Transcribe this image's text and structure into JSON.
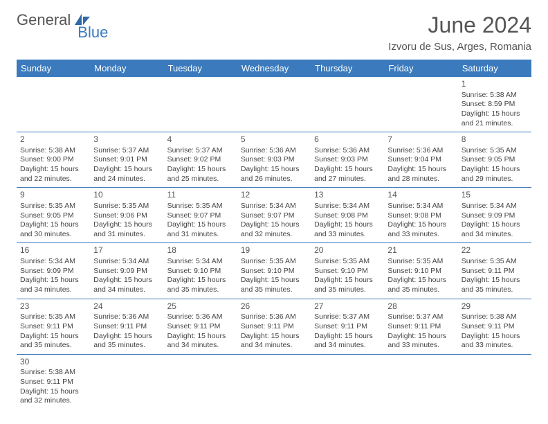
{
  "brand": {
    "part1": "General",
    "part2": "Blue"
  },
  "title": "June 2024",
  "location": "Izvoru de Sus, Arges, Romania",
  "colors": {
    "header_bg": "#3a7abd",
    "header_text": "#ffffff",
    "border": "#3a7abd",
    "text": "#444444",
    "title": "#555555"
  },
  "typography": {
    "title_fontsize": 32,
    "location_fontsize": 15,
    "dayheader_fontsize": 13,
    "cell_fontsize": 10.5,
    "daynum_fontsize": 12
  },
  "dayHeaders": [
    "Sunday",
    "Monday",
    "Tuesday",
    "Wednesday",
    "Thursday",
    "Friday",
    "Saturday"
  ],
  "weeks": [
    [
      null,
      null,
      null,
      null,
      null,
      null,
      {
        "n": "1",
        "sr": "Sunrise: 5:38 AM",
        "ss": "Sunset: 8:59 PM",
        "d1": "Daylight: 15 hours",
        "d2": "and 21 minutes."
      }
    ],
    [
      {
        "n": "2",
        "sr": "Sunrise: 5:38 AM",
        "ss": "Sunset: 9:00 PM",
        "d1": "Daylight: 15 hours",
        "d2": "and 22 minutes."
      },
      {
        "n": "3",
        "sr": "Sunrise: 5:37 AM",
        "ss": "Sunset: 9:01 PM",
        "d1": "Daylight: 15 hours",
        "d2": "and 24 minutes."
      },
      {
        "n": "4",
        "sr": "Sunrise: 5:37 AM",
        "ss": "Sunset: 9:02 PM",
        "d1": "Daylight: 15 hours",
        "d2": "and 25 minutes."
      },
      {
        "n": "5",
        "sr": "Sunrise: 5:36 AM",
        "ss": "Sunset: 9:03 PM",
        "d1": "Daylight: 15 hours",
        "d2": "and 26 minutes."
      },
      {
        "n": "6",
        "sr": "Sunrise: 5:36 AM",
        "ss": "Sunset: 9:03 PM",
        "d1": "Daylight: 15 hours",
        "d2": "and 27 minutes."
      },
      {
        "n": "7",
        "sr": "Sunrise: 5:36 AM",
        "ss": "Sunset: 9:04 PM",
        "d1": "Daylight: 15 hours",
        "d2": "and 28 minutes."
      },
      {
        "n": "8",
        "sr": "Sunrise: 5:35 AM",
        "ss": "Sunset: 9:05 PM",
        "d1": "Daylight: 15 hours",
        "d2": "and 29 minutes."
      }
    ],
    [
      {
        "n": "9",
        "sr": "Sunrise: 5:35 AM",
        "ss": "Sunset: 9:05 PM",
        "d1": "Daylight: 15 hours",
        "d2": "and 30 minutes."
      },
      {
        "n": "10",
        "sr": "Sunrise: 5:35 AM",
        "ss": "Sunset: 9:06 PM",
        "d1": "Daylight: 15 hours",
        "d2": "and 31 minutes."
      },
      {
        "n": "11",
        "sr": "Sunrise: 5:35 AM",
        "ss": "Sunset: 9:07 PM",
        "d1": "Daylight: 15 hours",
        "d2": "and 31 minutes."
      },
      {
        "n": "12",
        "sr": "Sunrise: 5:34 AM",
        "ss": "Sunset: 9:07 PM",
        "d1": "Daylight: 15 hours",
        "d2": "and 32 minutes."
      },
      {
        "n": "13",
        "sr": "Sunrise: 5:34 AM",
        "ss": "Sunset: 9:08 PM",
        "d1": "Daylight: 15 hours",
        "d2": "and 33 minutes."
      },
      {
        "n": "14",
        "sr": "Sunrise: 5:34 AM",
        "ss": "Sunset: 9:08 PM",
        "d1": "Daylight: 15 hours",
        "d2": "and 33 minutes."
      },
      {
        "n": "15",
        "sr": "Sunrise: 5:34 AM",
        "ss": "Sunset: 9:09 PM",
        "d1": "Daylight: 15 hours",
        "d2": "and 34 minutes."
      }
    ],
    [
      {
        "n": "16",
        "sr": "Sunrise: 5:34 AM",
        "ss": "Sunset: 9:09 PM",
        "d1": "Daylight: 15 hours",
        "d2": "and 34 minutes."
      },
      {
        "n": "17",
        "sr": "Sunrise: 5:34 AM",
        "ss": "Sunset: 9:09 PM",
        "d1": "Daylight: 15 hours",
        "d2": "and 34 minutes."
      },
      {
        "n": "18",
        "sr": "Sunrise: 5:34 AM",
        "ss": "Sunset: 9:10 PM",
        "d1": "Daylight: 15 hours",
        "d2": "and 35 minutes."
      },
      {
        "n": "19",
        "sr": "Sunrise: 5:35 AM",
        "ss": "Sunset: 9:10 PM",
        "d1": "Daylight: 15 hours",
        "d2": "and 35 minutes."
      },
      {
        "n": "20",
        "sr": "Sunrise: 5:35 AM",
        "ss": "Sunset: 9:10 PM",
        "d1": "Daylight: 15 hours",
        "d2": "and 35 minutes."
      },
      {
        "n": "21",
        "sr": "Sunrise: 5:35 AM",
        "ss": "Sunset: 9:10 PM",
        "d1": "Daylight: 15 hours",
        "d2": "and 35 minutes."
      },
      {
        "n": "22",
        "sr": "Sunrise: 5:35 AM",
        "ss": "Sunset: 9:11 PM",
        "d1": "Daylight: 15 hours",
        "d2": "and 35 minutes."
      }
    ],
    [
      {
        "n": "23",
        "sr": "Sunrise: 5:35 AM",
        "ss": "Sunset: 9:11 PM",
        "d1": "Daylight: 15 hours",
        "d2": "and 35 minutes."
      },
      {
        "n": "24",
        "sr": "Sunrise: 5:36 AM",
        "ss": "Sunset: 9:11 PM",
        "d1": "Daylight: 15 hours",
        "d2": "and 35 minutes."
      },
      {
        "n": "25",
        "sr": "Sunrise: 5:36 AM",
        "ss": "Sunset: 9:11 PM",
        "d1": "Daylight: 15 hours",
        "d2": "and 34 minutes."
      },
      {
        "n": "26",
        "sr": "Sunrise: 5:36 AM",
        "ss": "Sunset: 9:11 PM",
        "d1": "Daylight: 15 hours",
        "d2": "and 34 minutes."
      },
      {
        "n": "27",
        "sr": "Sunrise: 5:37 AM",
        "ss": "Sunset: 9:11 PM",
        "d1": "Daylight: 15 hours",
        "d2": "and 34 minutes."
      },
      {
        "n": "28",
        "sr": "Sunrise: 5:37 AM",
        "ss": "Sunset: 9:11 PM",
        "d1": "Daylight: 15 hours",
        "d2": "and 33 minutes."
      },
      {
        "n": "29",
        "sr": "Sunrise: 5:38 AM",
        "ss": "Sunset: 9:11 PM",
        "d1": "Daylight: 15 hours",
        "d2": "and 33 minutes."
      }
    ],
    [
      {
        "n": "30",
        "sr": "Sunrise: 5:38 AM",
        "ss": "Sunset: 9:11 PM",
        "d1": "Daylight: 15 hours",
        "d2": "and 32 minutes."
      },
      null,
      null,
      null,
      null,
      null,
      null
    ]
  ]
}
